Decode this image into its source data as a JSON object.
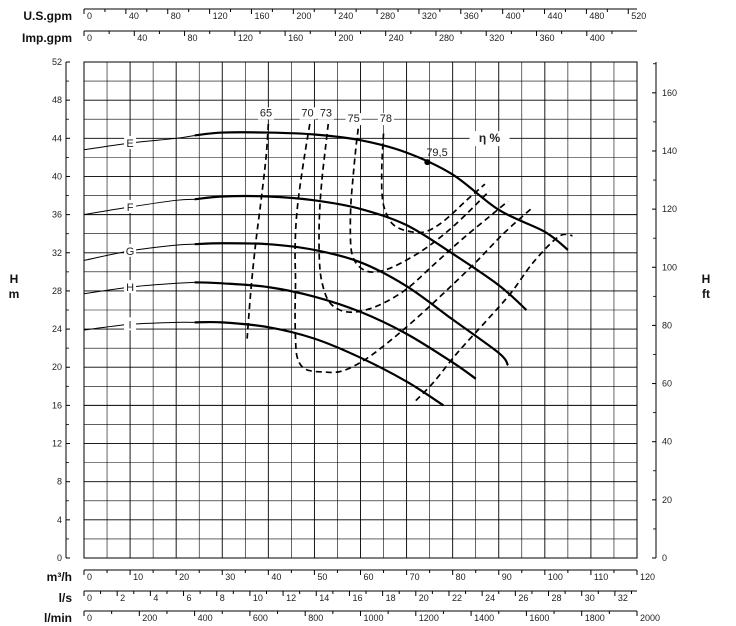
{
  "chart_data": {
    "type": "line",
    "title": "",
    "x_axes": [
      {
        "id": "gpm_us",
        "label": "U.S.gpm",
        "ticks": [
          0,
          40,
          80,
          120,
          160,
          200,
          240,
          280,
          320,
          360,
          400,
          440,
          480,
          520
        ]
      },
      {
        "id": "gpm_imp",
        "label": "Imp.gpm",
        "ticks": [
          0,
          40,
          80,
          120,
          160,
          200,
          240,
          280,
          320,
          360,
          400
        ]
      },
      {
        "id": "m3h",
        "label": "m³/h",
        "ticks": [
          0,
          10,
          20,
          30,
          40,
          50,
          60,
          70,
          80,
          90,
          100,
          110,
          120
        ]
      },
      {
        "id": "ls",
        "label": "l/s",
        "ticks": [
          0,
          2,
          4,
          6,
          8,
          10,
          12,
          14,
          16,
          18,
          20,
          22,
          24,
          26,
          28,
          30,
          32
        ]
      },
      {
        "id": "lmin",
        "label": "l/min",
        "ticks": [
          0,
          200,
          400,
          600,
          800,
          1000,
          1200,
          1400,
          1600,
          1800,
          2000
        ]
      }
    ],
    "y_left": {
      "label": "H",
      "unit": "m",
      "ticks": [
        0,
        4,
        8,
        12,
        16,
        20,
        24,
        28,
        32,
        36,
        40,
        44,
        48,
        52
      ],
      "range": [
        0,
        52
      ]
    },
    "y_right": {
      "label": "H",
      "unit": "ft",
      "ticks": [
        0,
        20,
        40,
        60,
        80,
        100,
        120,
        140,
        160
      ]
    },
    "x_range_m3h": [
      0,
      120
    ],
    "grid": true,
    "eta_label": "η %",
    "bep_label": "79,5",
    "bep_point": {
      "x": 74.5,
      "y": 41.5
    },
    "head_curves": [
      {
        "name": "E",
        "label_x": 10,
        "thin": [
          [
            0,
            42.8
          ],
          [
            10,
            43.5
          ],
          [
            20,
            44.0
          ],
          [
            24,
            44.3
          ]
        ],
        "thick": [
          [
            24,
            44.3
          ],
          [
            30,
            44.6
          ],
          [
            40,
            44.6
          ],
          [
            50,
            44.4
          ],
          [
            60,
            43.8
          ],
          [
            70,
            42.5
          ],
          [
            80,
            40.2
          ],
          [
            90,
            36.5
          ],
          [
            100,
            34.2
          ],
          [
            105,
            32.3
          ]
        ]
      },
      {
        "name": "F",
        "label_x": 10,
        "thin": [
          [
            0,
            36.0
          ],
          [
            10,
            36.8
          ],
          [
            20,
            37.5
          ],
          [
            24,
            37.6
          ]
        ],
        "thick": [
          [
            24,
            37.6
          ],
          [
            30,
            37.9
          ],
          [
            40,
            37.9
          ],
          [
            50,
            37.5
          ],
          [
            60,
            36.6
          ],
          [
            70,
            34.9
          ],
          [
            80,
            31.9
          ],
          [
            90,
            28.6
          ],
          [
            96,
            26.0
          ]
        ]
      },
      {
        "name": "G",
        "label_x": 10,
        "thin": [
          [
            0,
            31.2
          ],
          [
            10,
            32.2
          ],
          [
            20,
            32.8
          ],
          [
            24,
            32.9
          ]
        ],
        "thick": [
          [
            24,
            32.9
          ],
          [
            30,
            33.0
          ],
          [
            40,
            32.9
          ],
          [
            50,
            32.3
          ],
          [
            60,
            31.0
          ],
          [
            70,
            28.5
          ],
          [
            80,
            25.0
          ],
          [
            90,
            21.5
          ],
          [
            92,
            20.2
          ]
        ]
      },
      {
        "name": "H",
        "label_x": 10,
        "thin": [
          [
            0,
            27.7
          ],
          [
            10,
            28.4
          ],
          [
            20,
            28.8
          ],
          [
            24,
            28.9
          ]
        ],
        "thick": [
          [
            24,
            28.9
          ],
          [
            30,
            28.8
          ],
          [
            40,
            28.4
          ],
          [
            50,
            27.4
          ],
          [
            60,
            25.8
          ],
          [
            70,
            23.5
          ],
          [
            80,
            20.5
          ],
          [
            85,
            18.8
          ]
        ]
      },
      {
        "name": "I",
        "label_x": 10,
        "thin": [
          [
            0,
            23.9
          ],
          [
            10,
            24.5
          ],
          [
            20,
            24.7
          ],
          [
            24,
            24.7
          ]
        ],
        "thick": [
          [
            24,
            24.7
          ],
          [
            30,
            24.7
          ],
          [
            40,
            24.2
          ],
          [
            50,
            23.0
          ],
          [
            60,
            21.0
          ],
          [
            70,
            18.5
          ],
          [
            78,
            16.0
          ]
        ]
      }
    ],
    "efficiency_curves": [
      {
        "name": "65",
        "label_x": 39.5,
        "label_y": 46.3,
        "points": [
          [
            40,
            45.5
          ],
          [
            39.5,
            42
          ],
          [
            38.3,
            37
          ],
          [
            37.5,
            34
          ],
          [
            36.8,
            31
          ],
          [
            36.2,
            28
          ],
          [
            35.7,
            25
          ],
          [
            35.4,
            23
          ]
        ]
      },
      {
        "name": "70",
        "label_x": 48.5,
        "label_y": 46.3,
        "points": [
          [
            49,
            45.5
          ],
          [
            47.8,
            42
          ],
          [
            46.6,
            38
          ],
          [
            46.0,
            35
          ],
          [
            45.8,
            32
          ],
          [
            45.9,
            29
          ],
          [
            45.8,
            26
          ],
          [
            45.9,
            23
          ],
          [
            46.3,
            21
          ],
          [
            48,
            19.8
          ],
          [
            52,
            19.5
          ],
          [
            56,
            19.6
          ],
          [
            61,
            20.8
          ],
          [
            67,
            23.0
          ],
          [
            73,
            25.5
          ],
          [
            79,
            28.2
          ],
          [
            85,
            31.0
          ],
          [
            91,
            34.0
          ],
          [
            97,
            36.6
          ]
        ]
      },
      {
        "name": "73",
        "label_x": 52.5,
        "label_y": 46.3,
        "points": [
          [
            53,
            45.5
          ],
          [
            52.4,
            43
          ],
          [
            51.7,
            40
          ],
          [
            51.2,
            37
          ],
          [
            51.0,
            34
          ],
          [
            51.1,
            31
          ],
          [
            51.6,
            29
          ],
          [
            53.0,
            27
          ],
          [
            55.5,
            26.0
          ],
          [
            59,
            25.8
          ],
          [
            64,
            26.5
          ],
          [
            70,
            28.2
          ],
          [
            76,
            30.8
          ],
          [
            82,
            33.4
          ],
          [
            88,
            35.8
          ],
          [
            92,
            37.4
          ]
        ]
      },
      {
        "name": "75",
        "label_x": 58.5,
        "label_y": 45.7,
        "points": [
          [
            59.5,
            45.0
          ],
          [
            59,
            43
          ],
          [
            58.4,
            40
          ],
          [
            57.9,
            37
          ],
          [
            57.8,
            34
          ],
          [
            58.1,
            32
          ],
          [
            59.4,
            30.7
          ],
          [
            62,
            30
          ],
          [
            66,
            30.3
          ],
          [
            72,
            31.8
          ],
          [
            77,
            33.5
          ],
          [
            82,
            35.6
          ],
          [
            88,
            38.5
          ]
        ]
      },
      {
        "name": "78",
        "label_x": 65.5,
        "label_y": 45.7,
        "points": [
          [
            65,
            44.5
          ],
          [
            64.7,
            42
          ],
          [
            64.6,
            40
          ],
          [
            64.7,
            38
          ],
          [
            65.3,
            36.5
          ],
          [
            67,
            35.0
          ],
          [
            70,
            34.3
          ],
          [
            74,
            34.2
          ],
          [
            78,
            35.3
          ],
          [
            83,
            37.5
          ],
          [
            87,
            39.2
          ]
        ]
      },
      {
        "name": "",
        "label_x": 0,
        "label_y": 0,
        "points": [
          [
            72,
            16.5
          ],
          [
            76,
            18.5
          ],
          [
            81,
            21.5
          ],
          [
            87,
            24.7
          ],
          [
            92.5,
            27.7
          ],
          [
            97.5,
            31.0
          ],
          [
            103,
            33.7
          ],
          [
            106,
            33.8
          ]
        ]
      }
    ]
  }
}
